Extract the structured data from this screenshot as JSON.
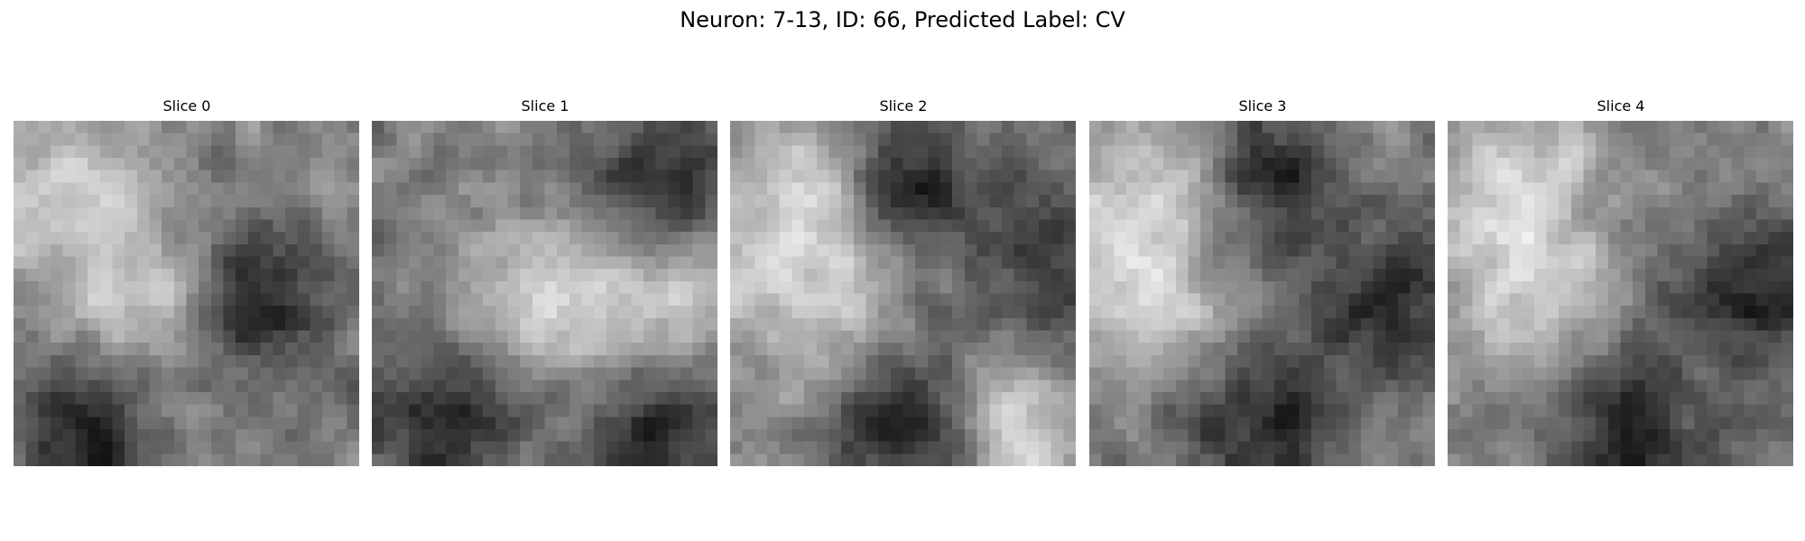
{
  "figure": {
    "title": "Neuron: 7-13, ID: 66, Predicted Label: CV"
  },
  "slices": [
    {
      "label": "Slice 0",
      "dark_regions": [
        "center-right",
        "bottom-left"
      ],
      "bright_regions": [
        "center-left",
        "top-left"
      ]
    },
    {
      "label": "Slice 1",
      "dark_regions": [
        "top-right",
        "bottom-left",
        "bottom-right"
      ],
      "bright_regions": [
        "center",
        "right-middle"
      ]
    },
    {
      "label": "Slice 2",
      "dark_regions": [
        "top-center",
        "right-edge",
        "bottom-center"
      ],
      "bright_regions": [
        "left-middle",
        "top-left",
        "bottom-right"
      ]
    },
    {
      "label": "Slice 3",
      "dark_regions": [
        "right-middle",
        "bottom-center",
        "top-center"
      ],
      "bright_regions": [
        "left",
        "top-left"
      ]
    },
    {
      "label": "Slice 4",
      "dark_regions": [
        "right-middle",
        "bottom-center"
      ],
      "bright_regions": [
        "top-left",
        "left-middle"
      ]
    }
  ],
  "colormap": "gray"
}
